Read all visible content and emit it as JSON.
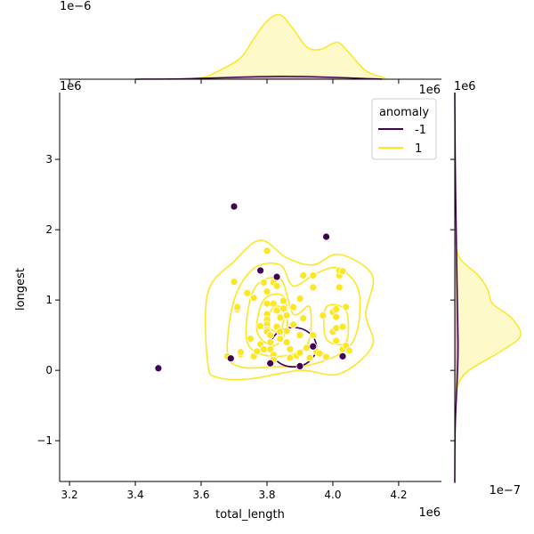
{
  "chart_data": {
    "type": "scatter",
    "kind": "jointplot with kde contours and marginal kde",
    "xlabel": "total_length",
    "ylabel": "longest",
    "x_multiplier": "1e6",
    "y_multiplier": "1e6",
    "top_marginal_multiplier": "1e−6",
    "right_marginal_multiplier": "1e−7",
    "xlim": [
      3.17,
      4.33
    ],
    "ylim": [
      -1.58,
      3.95
    ],
    "x_ticks": [
      3.2,
      3.4,
      3.6,
      3.8,
      4.0,
      4.2
    ],
    "x_tick_labels": [
      "3.2",
      "3.4",
      "3.6",
      "3.8",
      "4.0",
      "4.2"
    ],
    "y_ticks": [
      -1,
      0,
      1,
      2,
      3
    ],
    "y_tick_labels": [
      "−1",
      "0",
      "1",
      "2",
      "3"
    ],
    "legend": {
      "title": "anomaly",
      "placement": "upper right",
      "entries": [
        {
          "label": "-1",
          "color": "#440154"
        },
        {
          "label": "1",
          "color": "#fde725"
        }
      ]
    },
    "series": [
      {
        "name": "-1",
        "color": "#440154",
        "points": [
          [
            3.47,
            0.03
          ],
          [
            3.69,
            0.17
          ],
          [
            3.7,
            2.33
          ],
          [
            3.78,
            1.42
          ],
          [
            3.83,
            1.33
          ],
          [
            3.98,
            1.9
          ],
          [
            3.81,
            0.1
          ],
          [
            3.9,
            0.06
          ],
          [
            3.94,
            0.34
          ],
          [
            4.03,
            0.2
          ]
        ]
      },
      {
        "name": "1",
        "color": "#fde725",
        "points": [
          [
            3.7,
            1.26
          ],
          [
            3.71,
            0.87
          ],
          [
            3.71,
            0.9
          ],
          [
            3.68,
            0.2
          ],
          [
            3.72,
            0.23
          ],
          [
            3.74,
            1.1
          ],
          [
            3.75,
            0.45
          ],
          [
            3.76,
            1.03
          ],
          [
            3.76,
            0.2
          ],
          [
            3.77,
            0.27
          ],
          [
            3.78,
            0.63
          ],
          [
            3.78,
            0.37
          ],
          [
            3.79,
            0.3
          ],
          [
            3.79,
            1.25
          ],
          [
            3.8,
            1.7
          ],
          [
            3.8,
            1.12
          ],
          [
            3.8,
            0.95
          ],
          [
            3.8,
            0.8
          ],
          [
            3.8,
            0.72
          ],
          [
            3.8,
            0.65
          ],
          [
            3.8,
            0.58
          ],
          [
            3.8,
            0.55
          ],
          [
            3.81,
            0.5
          ],
          [
            3.81,
            0.4
          ],
          [
            3.81,
            0.3
          ],
          [
            3.82,
            0.22
          ],
          [
            3.82,
            0.15
          ],
          [
            3.82,
            1.25
          ],
          [
            3.82,
            0.95
          ],
          [
            3.83,
            0.85
          ],
          [
            3.83,
            1.2
          ],
          [
            3.83,
            0.62
          ],
          [
            3.84,
            0.75
          ],
          [
            3.84,
            0.55
          ],
          [
            3.84,
            0.45
          ],
          [
            3.85,
            0.99
          ],
          [
            3.85,
            0.88
          ],
          [
            3.86,
            0.78
          ],
          [
            3.86,
            0.56
          ],
          [
            3.86,
            0.4
          ],
          [
            3.87,
            0.3
          ],
          [
            3.87,
            0.18
          ],
          [
            3.88,
            0.9
          ],
          [
            3.88,
            0.65
          ],
          [
            3.89,
            0.21
          ],
          [
            3.9,
            0.25
          ],
          [
            3.9,
            1.02
          ],
          [
            3.9,
            0.5
          ],
          [
            3.91,
            0.74
          ],
          [
            3.91,
            1.35
          ],
          [
            3.92,
            0.32
          ],
          [
            3.93,
            0.18
          ],
          [
            3.94,
            1.35
          ],
          [
            3.94,
            1.18
          ],
          [
            3.95,
            0.27
          ],
          [
            3.96,
            0.24
          ],
          [
            3.97,
            0.78
          ],
          [
            3.98,
            0.19
          ],
          [
            4.0,
            0.55
          ],
          [
            4.0,
            0.83
          ],
          [
            4.01,
            0.6
          ],
          [
            4.01,
            0.42
          ],
          [
            4.01,
            0.76
          ],
          [
            4.01,
            0.87
          ],
          [
            4.02,
            1.35
          ],
          [
            4.02,
            1.42
          ],
          [
            4.02,
            1.18
          ],
          [
            4.03,
            0.3
          ],
          [
            4.03,
            0.62
          ],
          [
            4.04,
            0.9
          ],
          [
            4.03,
            1.41
          ],
          [
            4.04,
            0.35
          ],
          [
            4.05,
            0.28
          ],
          [
            3.72,
            0.26
          ],
          [
            3.94,
            0.5
          ]
        ]
      }
    ],
    "kde_contours": {
      "-1": {
        "color": "#440154",
        "center": [
          3.88,
          0.33
        ],
        "radius": [
          0.07,
          0.28
        ]
      },
      "1": {
        "color": "#fde725",
        "levels": [
          [
            [
              3.62,
              0.1
            ],
            [
              3.62,
              1.1
            ],
            [
              3.7,
              1.55
            ],
            [
              3.78,
              1.85
            ],
            [
              3.86,
              1.6
            ],
            [
              3.94,
              1.5
            ],
            [
              4.02,
              1.65
            ],
            [
              4.12,
              1.35
            ],
            [
              4.1,
              0.8
            ],
            [
              4.12,
              0.35
            ],
            [
              4.02,
              -0.05
            ],
            [
              3.9,
              0.0
            ],
            [
              3.75,
              -0.12
            ],
            [
              3.65,
              -0.1
            ]
          ],
          [
            [
              3.68,
              0.25
            ],
            [
              3.7,
              1.0
            ],
            [
              3.76,
              1.45
            ],
            [
              3.84,
              1.5
            ],
            [
              3.88,
              1.2
            ],
            [
              3.95,
              1.38
            ],
            [
              4.02,
              1.45
            ],
            [
              4.08,
              1.1
            ],
            [
              4.06,
              0.4
            ],
            [
              3.95,
              0.1
            ],
            [
              3.82,
              0.05
            ],
            [
              3.72,
              0.05
            ]
          ],
          [
            [
              3.74,
              0.4
            ],
            [
              3.76,
              1.15
            ],
            [
              3.84,
              1.3
            ],
            [
              3.88,
              0.8
            ],
            [
              3.93,
              0.9
            ],
            [
              3.92,
              0.35
            ],
            [
              3.82,
              0.2
            ]
          ],
          [
            [
              3.77,
              0.55
            ],
            [
              3.79,
              1.0
            ],
            [
              3.85,
              1.05
            ],
            [
              3.86,
              0.6
            ],
            [
              3.82,
              0.35
            ]
          ],
          [
            [
              3.8,
              0.65
            ],
            [
              3.82,
              0.9
            ],
            [
              3.85,
              0.85
            ],
            [
              3.84,
              0.55
            ]
          ],
          [
            [
              3.98,
              0.45
            ],
            [
              3.98,
              0.9
            ],
            [
              4.04,
              0.85
            ],
            [
              4.04,
              0.4
            ]
          ]
        ]
      }
    },
    "top_marginal": {
      "series_1": [
        [
          3.5,
          0.0
        ],
        [
          3.6,
          0.03
        ],
        [
          3.66,
          0.2
        ],
        [
          3.72,
          0.45
        ],
        [
          3.76,
          0.85
        ],
        [
          3.8,
          1.22
        ],
        [
          3.84,
          1.35
        ],
        [
          3.88,
          1.05
        ],
        [
          3.92,
          0.68
        ],
        [
          3.96,
          0.62
        ],
        [
          4.0,
          0.75
        ],
        [
          4.02,
          0.76
        ],
        [
          4.05,
          0.55
        ],
        [
          4.1,
          0.18
        ],
        [
          4.16,
          0.02
        ]
      ],
      "series_neg1": [
        [
          3.4,
          0.0
        ],
        [
          3.55,
          0.01
        ],
        [
          3.7,
          0.04
        ],
        [
          3.85,
          0.06
        ],
        [
          4.0,
          0.04
        ],
        [
          4.15,
          0.0
        ]
      ]
    },
    "right_marginal": {
      "series_1": [
        [
          -0.45,
          0.0
        ],
        [
          -0.2,
          0.15
        ],
        [
          0.0,
          0.6
        ],
        [
          0.3,
          2.1
        ],
        [
          0.5,
          2.8
        ],
        [
          0.75,
          2.4
        ],
        [
          0.95,
          1.6
        ],
        [
          1.15,
          1.4
        ],
        [
          1.35,
          1.0
        ],
        [
          1.6,
          0.2
        ],
        [
          1.9,
          0.0
        ]
      ],
      "series_neg1": [
        [
          -1.6,
          0.0
        ],
        [
          -0.8,
          0.02
        ],
        [
          0.0,
          0.12
        ],
        [
          0.4,
          0.14
        ],
        [
          1.2,
          0.1
        ],
        [
          2.0,
          0.06
        ],
        [
          3.0,
          0.02
        ],
        [
          3.95,
          0.0
        ]
      ]
    }
  }
}
